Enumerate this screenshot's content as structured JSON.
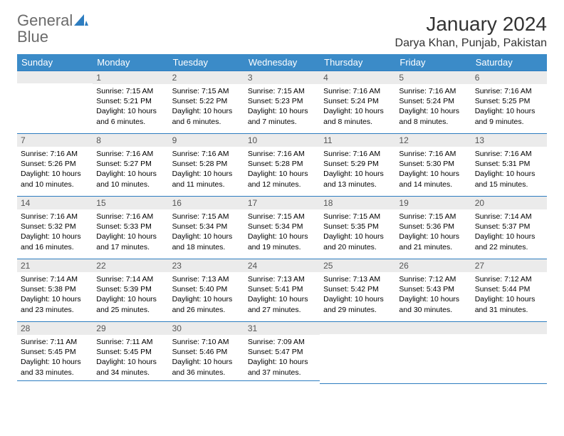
{
  "logo": {
    "word1": "General",
    "word2": "Blue"
  },
  "title": "January 2024",
  "location": "Darya Khan, Punjab, Pakistan",
  "colors": {
    "header_bg": "#3b8bc8",
    "header_text": "#ffffff",
    "daynum_bg": "#ebebeb",
    "row_border": "#2d7dc0",
    "logo_gray": "#6b6b6b",
    "logo_blue": "#2d7dc0"
  },
  "weekdays": [
    "Sunday",
    "Monday",
    "Tuesday",
    "Wednesday",
    "Thursday",
    "Friday",
    "Saturday"
  ],
  "weeks": [
    [
      null,
      {
        "n": "1",
        "sr": "7:15 AM",
        "ss": "5:21 PM",
        "dl": "10 hours and 6 minutes."
      },
      {
        "n": "2",
        "sr": "7:15 AM",
        "ss": "5:22 PM",
        "dl": "10 hours and 6 minutes."
      },
      {
        "n": "3",
        "sr": "7:15 AM",
        "ss": "5:23 PM",
        "dl": "10 hours and 7 minutes."
      },
      {
        "n": "4",
        "sr": "7:16 AM",
        "ss": "5:24 PM",
        "dl": "10 hours and 8 minutes."
      },
      {
        "n": "5",
        "sr": "7:16 AM",
        "ss": "5:24 PM",
        "dl": "10 hours and 8 minutes."
      },
      {
        "n": "6",
        "sr": "7:16 AM",
        "ss": "5:25 PM",
        "dl": "10 hours and 9 minutes."
      }
    ],
    [
      {
        "n": "7",
        "sr": "7:16 AM",
        "ss": "5:26 PM",
        "dl": "10 hours and 10 minutes."
      },
      {
        "n": "8",
        "sr": "7:16 AM",
        "ss": "5:27 PM",
        "dl": "10 hours and 10 minutes."
      },
      {
        "n": "9",
        "sr": "7:16 AM",
        "ss": "5:28 PM",
        "dl": "10 hours and 11 minutes."
      },
      {
        "n": "10",
        "sr": "7:16 AM",
        "ss": "5:28 PM",
        "dl": "10 hours and 12 minutes."
      },
      {
        "n": "11",
        "sr": "7:16 AM",
        "ss": "5:29 PM",
        "dl": "10 hours and 13 minutes."
      },
      {
        "n": "12",
        "sr": "7:16 AM",
        "ss": "5:30 PM",
        "dl": "10 hours and 14 minutes."
      },
      {
        "n": "13",
        "sr": "7:16 AM",
        "ss": "5:31 PM",
        "dl": "10 hours and 15 minutes."
      }
    ],
    [
      {
        "n": "14",
        "sr": "7:16 AM",
        "ss": "5:32 PM",
        "dl": "10 hours and 16 minutes."
      },
      {
        "n": "15",
        "sr": "7:16 AM",
        "ss": "5:33 PM",
        "dl": "10 hours and 17 minutes."
      },
      {
        "n": "16",
        "sr": "7:15 AM",
        "ss": "5:34 PM",
        "dl": "10 hours and 18 minutes."
      },
      {
        "n": "17",
        "sr": "7:15 AM",
        "ss": "5:34 PM",
        "dl": "10 hours and 19 minutes."
      },
      {
        "n": "18",
        "sr": "7:15 AM",
        "ss": "5:35 PM",
        "dl": "10 hours and 20 minutes."
      },
      {
        "n": "19",
        "sr": "7:15 AM",
        "ss": "5:36 PM",
        "dl": "10 hours and 21 minutes."
      },
      {
        "n": "20",
        "sr": "7:14 AM",
        "ss": "5:37 PM",
        "dl": "10 hours and 22 minutes."
      }
    ],
    [
      {
        "n": "21",
        "sr": "7:14 AM",
        "ss": "5:38 PM",
        "dl": "10 hours and 23 minutes."
      },
      {
        "n": "22",
        "sr": "7:14 AM",
        "ss": "5:39 PM",
        "dl": "10 hours and 25 minutes."
      },
      {
        "n": "23",
        "sr": "7:13 AM",
        "ss": "5:40 PM",
        "dl": "10 hours and 26 minutes."
      },
      {
        "n": "24",
        "sr": "7:13 AM",
        "ss": "5:41 PM",
        "dl": "10 hours and 27 minutes."
      },
      {
        "n": "25",
        "sr": "7:13 AM",
        "ss": "5:42 PM",
        "dl": "10 hours and 29 minutes."
      },
      {
        "n": "26",
        "sr": "7:12 AM",
        "ss": "5:43 PM",
        "dl": "10 hours and 30 minutes."
      },
      {
        "n": "27",
        "sr": "7:12 AM",
        "ss": "5:44 PM",
        "dl": "10 hours and 31 minutes."
      }
    ],
    [
      {
        "n": "28",
        "sr": "7:11 AM",
        "ss": "5:45 PM",
        "dl": "10 hours and 33 minutes."
      },
      {
        "n": "29",
        "sr": "7:11 AM",
        "ss": "5:45 PM",
        "dl": "10 hours and 34 minutes."
      },
      {
        "n": "30",
        "sr": "7:10 AM",
        "ss": "5:46 PM",
        "dl": "10 hours and 36 minutes."
      },
      {
        "n": "31",
        "sr": "7:09 AM",
        "ss": "5:47 PM",
        "dl": "10 hours and 37 minutes."
      },
      null,
      null,
      null
    ]
  ],
  "labels": {
    "sunrise": "Sunrise:",
    "sunset": "Sunset:",
    "daylight": "Daylight:"
  }
}
